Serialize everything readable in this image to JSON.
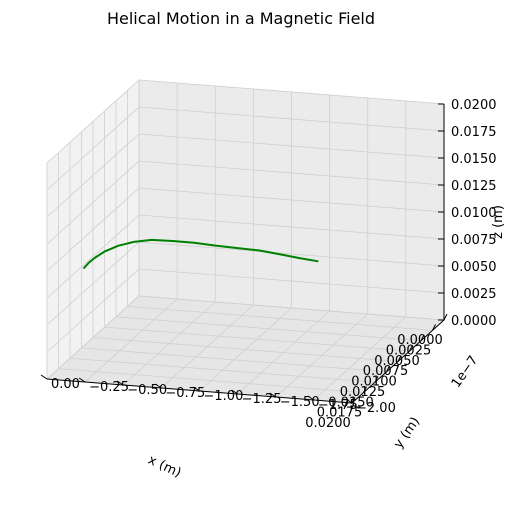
{
  "chart_data": {
    "type": "line3d",
    "title": "Helical Motion in a Magnetic Field",
    "xlabel": "x (m)",
    "ylabel": "y (m)",
    "zlabel": "z (m)",
    "y_offset_text": "1e−7",
    "xlim": [
      0,
      0.02
    ],
    "ylim": [
      -2e-07,
      0
    ],
    "zlim": [
      0,
      0.02
    ],
    "x_ticks": [
      "0.0000",
      "0.0025",
      "0.0050",
      "0.0075",
      "0.0100",
      "0.0125",
      "0.0150",
      "0.0175",
      "0.0200"
    ],
    "y_ticks": [
      "0.00",
      "−0.25",
      "−0.50",
      "−0.75",
      "−1.00",
      "−1.25",
      "−1.50",
      "−1.75",
      "−2.00"
    ],
    "z_ticks": [
      "0.0000",
      "0.0025",
      "0.0050",
      "0.0075",
      "0.0100",
      "0.0125",
      "0.0150",
      "0.0175",
      "0.0200"
    ],
    "grid": true,
    "series": [
      {
        "color": "#008000",
        "x": [
          0.0076,
          0.0082,
          0.0089,
          0.0096,
          0.0104,
          0.0112,
          0.0119,
          0.0126,
          0.0132,
          0.0137,
          0.0141,
          0.0144,
          0.0146,
          0.0146,
          0.0146
        ],
        "y": [
          -1.4e-07,
          -1.3e-07,
          -1.2e-07,
          -1.08e-07,
          -9.6e-08,
          -8.4e-08,
          -7.2e-08,
          -6e-08,
          -4.8e-08,
          -3.8e-08,
          -2.9e-08,
          -2.1e-08,
          -1.5e-08,
          -1.1e-08,
          -8e-09
        ],
        "z": [
          0.0077,
          0.0081,
          0.0086,
          0.0091,
          0.0095,
          0.0099,
          0.0103,
          0.0106,
          0.0108,
          0.0107,
          0.0104,
          0.0099,
          0.0093,
          0.0088,
          0.0083
        ]
      }
    ]
  }
}
